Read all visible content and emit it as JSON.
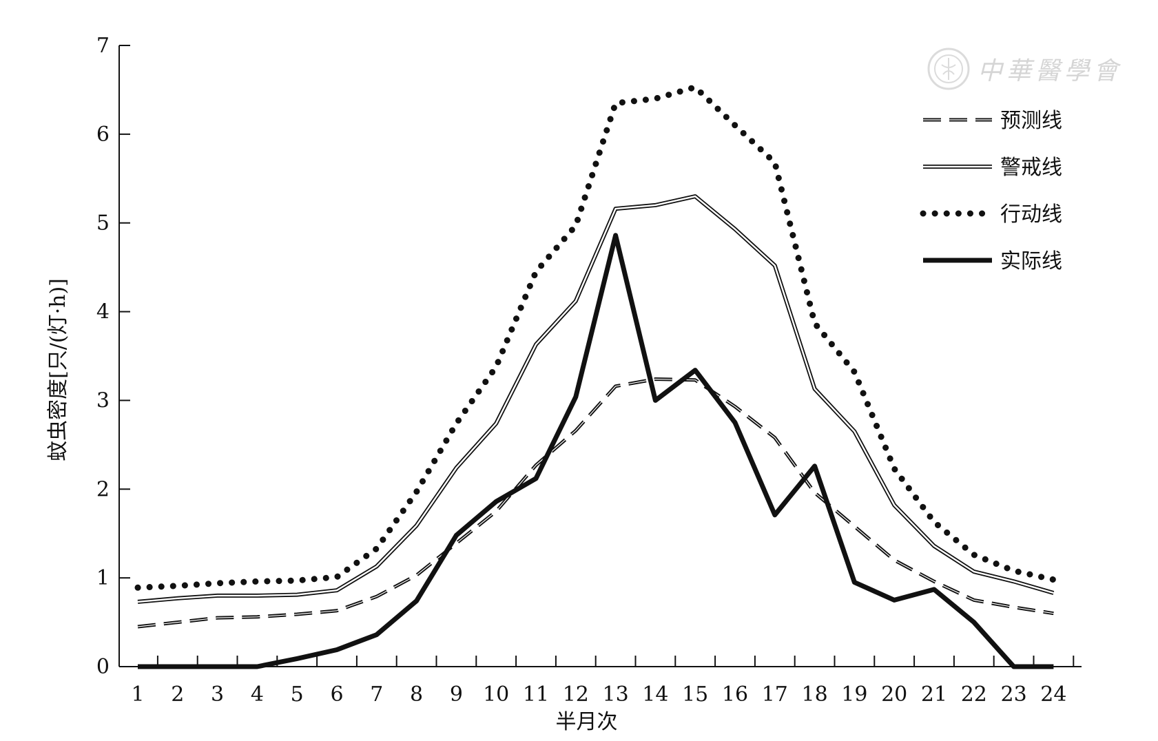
{
  "chart_data": {
    "type": "line",
    "xlabel": "半月次",
    "ylabel": "蚊虫密度[只/(灯·h)]",
    "categories": [
      "1",
      "2",
      "3",
      "4",
      "5",
      "6",
      "7",
      "8",
      "9",
      "10",
      "11",
      "12",
      "13",
      "14",
      "15",
      "16",
      "17",
      "18",
      "19",
      "20",
      "21",
      "22",
      "23",
      "24"
    ],
    "ylim": [
      0,
      7
    ],
    "yticks": [
      0,
      1,
      2,
      3,
      4,
      5,
      6,
      7
    ],
    "legend_position": "top-right",
    "series": [
      {
        "name": "预测线",
        "style": "dashed",
        "values": [
          0.45,
          0.5,
          0.55,
          0.56,
          0.59,
          0.63,
          0.79,
          1.03,
          1.39,
          1.75,
          2.27,
          2.66,
          3.16,
          3.24,
          3.23,
          2.93,
          2.58,
          1.96,
          1.58,
          1.2,
          0.96,
          0.75,
          0.67,
          0.6
        ]
      },
      {
        "name": "警戒线",
        "style": "double",
        "values": [
          0.73,
          0.77,
          0.8,
          0.8,
          0.81,
          0.86,
          1.13,
          1.59,
          2.24,
          2.74,
          3.63,
          4.12,
          5.16,
          5.2,
          5.3,
          4.93,
          4.52,
          3.13,
          2.65,
          1.82,
          1.36,
          1.07,
          0.96,
          0.83
        ]
      },
      {
        "name": "行动线",
        "style": "dotted",
        "values": [
          0.89,
          0.91,
          0.94,
          0.96,
          0.97,
          1.01,
          1.33,
          1.97,
          2.74,
          3.38,
          4.45,
          4.97,
          6.35,
          6.4,
          6.53,
          6.1,
          5.68,
          3.87,
          3.32,
          2.23,
          1.63,
          1.26,
          1.08,
          0.98
        ]
      },
      {
        "name": "实际线",
        "style": "solid-thick",
        "values": [
          0,
          0,
          0,
          0,
          0.09,
          0.19,
          0.36,
          0.74,
          1.48,
          1.86,
          2.12,
          3.04,
          4.86,
          3.0,
          3.34,
          2.75,
          1.71,
          2.26,
          0.95,
          0.75,
          0.87,
          0.5,
          0.0,
          0.0
        ]
      }
    ]
  },
  "watermark": {
    "text": "中華醫學會"
  },
  "colors": {
    "line": "#111111",
    "watermark": "#888888"
  }
}
